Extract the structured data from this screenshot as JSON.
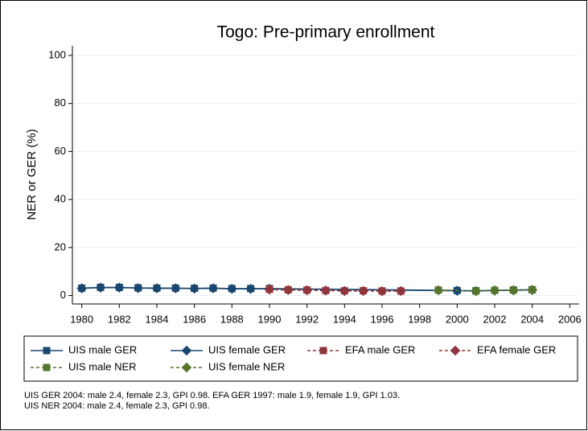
{
  "chart_data": {
    "type": "line",
    "title": "Togo: Pre-primary enrollment",
    "y_label": "NER or GER (%)",
    "xlim": [
      1979.5,
      2006.5
    ],
    "xticks": [
      1980,
      1982,
      1984,
      1986,
      1988,
      1990,
      1992,
      1994,
      1996,
      1998,
      2000,
      2002,
      2004,
      2006
    ],
    "ylim": [
      -3.5,
      104
    ],
    "yticks": [
      0,
      20,
      40,
      60,
      80,
      100
    ],
    "grid": true,
    "series": [
      {
        "name": "UIS male GER",
        "color": "#1a476f",
        "marker": "square",
        "dash": false,
        "x": [
          1980,
          1981,
          1982,
          1983,
          1984,
          1985,
          1986,
          1987,
          1988,
          1989,
          1990,
          2000,
          2001,
          2002,
          2003,
          2004
        ],
        "values": [
          3.1,
          3.4,
          3.4,
          3.2,
          3.1,
          3.1,
          3.0,
          3.1,
          2.9,
          2.9,
          2.9,
          2.1,
          2.0,
          2.2,
          2.3,
          2.4
        ]
      },
      {
        "name": "UIS female GER",
        "color": "#1a476f",
        "marker": "diamond",
        "dash": false,
        "x": [
          1980,
          1981,
          1982,
          1983,
          1984,
          1985,
          1986,
          1987,
          1988,
          1989,
          1990,
          2000,
          2001,
          2002,
          2003,
          2004
        ],
        "values": [
          3.0,
          3.3,
          3.3,
          3.1,
          3.0,
          3.0,
          2.9,
          3.0,
          2.8,
          2.8,
          2.8,
          2.0,
          1.9,
          2.1,
          2.2,
          2.3
        ]
      },
      {
        "name": "EFA male GER",
        "color": "#90353b",
        "marker": "square",
        "dash": true,
        "x": [
          1990,
          1991,
          1992,
          1993,
          1994,
          1995,
          1996,
          1997
        ],
        "values": [
          2.6,
          2.4,
          2.3,
          2.1,
          2.0,
          2.0,
          1.9,
          1.9
        ]
      },
      {
        "name": "EFA female GER",
        "color": "#90353b",
        "marker": "diamond",
        "dash": true,
        "x": [
          1990,
          1991,
          1992,
          1993,
          1994,
          1995,
          1996,
          1997
        ],
        "values": [
          2.5,
          2.3,
          2.2,
          2.1,
          1.9,
          1.9,
          1.8,
          1.9
        ]
      },
      {
        "name": "UIS male NER",
        "color": "#55752f",
        "marker": "square",
        "dash": true,
        "x": [
          1999,
          2001,
          2002,
          2003,
          2004
        ],
        "values": [
          2.3,
          1.9,
          2.2,
          2.3,
          2.4
        ]
      },
      {
        "name": "UIS female NER",
        "color": "#55752f",
        "marker": "diamond",
        "dash": true,
        "x": [
          1999,
          2001,
          2002,
          2003,
          2004
        ],
        "values": [
          2.2,
          1.8,
          2.1,
          2.2,
          2.3
        ]
      }
    ],
    "notes": [
      "UIS GER 2004: male 2.4, female 2.3, GPI 0.98. EFA GER 1997: male 1.9, female 1.9, GPI 1.03.",
      "UIS NER 2004: male 2.4, female 2.3, GPI 0.98."
    ]
  }
}
